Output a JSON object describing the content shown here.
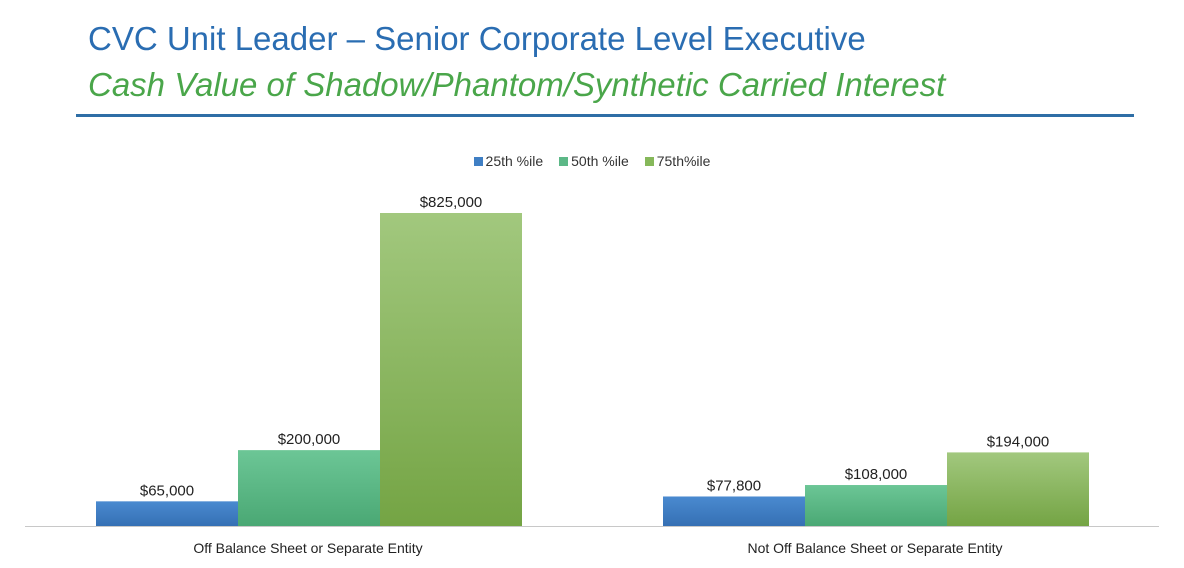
{
  "header": {
    "title": "CVC Unit Leader – Senior Corporate Level Executive",
    "subtitle": "Cash Value of Shadow/Phantom/Synthetic Carried Interest"
  },
  "colors": {
    "title": "#2a6db2",
    "subtitle": "#4aa64a",
    "rule": "#2e6ea6",
    "series": [
      "#3f7fc4",
      "#5cb887",
      "#86b85a"
    ]
  },
  "chart_data": {
    "type": "bar",
    "title": "",
    "xlabel": "",
    "ylabel": "",
    "categories": [
      "Off Balance Sheet or Separate Entity",
      "Not Off Balance Sheet or Separate Entity"
    ],
    "series": [
      {
        "name": "25th %ile",
        "values": [
          65000,
          77800
        ],
        "labels": [
          "$65,000",
          "$77,800"
        ]
      },
      {
        "name": "50th %ile",
        "values": [
          200000,
          108000
        ],
        "labels": [
          "$200,000",
          "$108,000"
        ]
      },
      {
        "name": "75th%ile",
        "values": [
          825000,
          194000
        ],
        "labels": [
          "$825,000",
          "$194,000"
        ]
      }
    ],
    "ylim": [
      0,
      825000
    ],
    "grid": false,
    "legend": "top-center",
    "y_axis_visible": false
  }
}
